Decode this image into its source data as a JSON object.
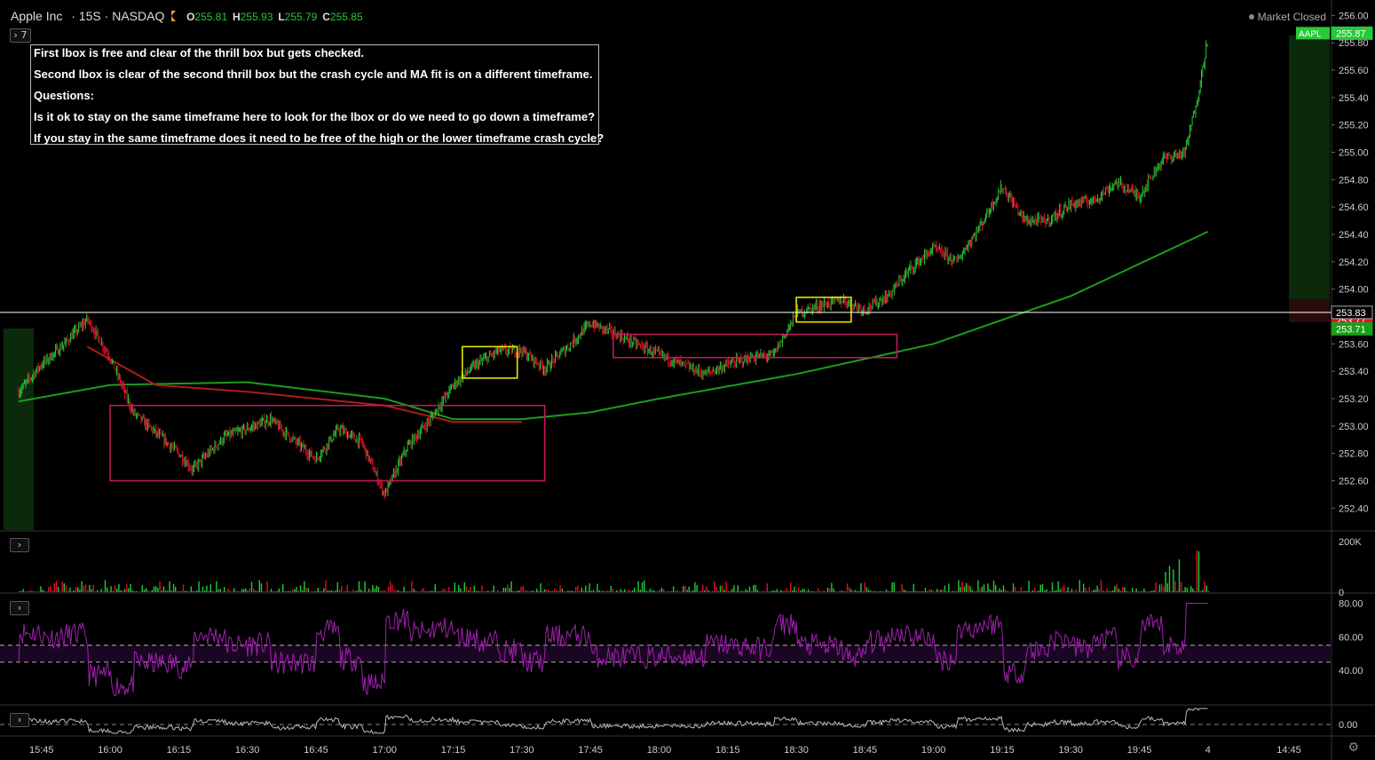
{
  "header": {
    "symbol": "Apple Inc",
    "interval": "15S",
    "exchange": "NASDAQ",
    "ohlc": {
      "o_label": "O",
      "o": "255.81",
      "h_label": "H",
      "h": "255.93",
      "l_label": "L",
      "l": "255.79",
      "c_label": "C",
      "c": "255.85"
    },
    "status": "Market Closed",
    "indicator_count": "7"
  },
  "note": {
    "lines": [
      "First lbox is free and clear of the thrill box but gets checked.",
      "Second lbox is clear of the second thrill box but the crash cycle and MA fit is on a different timeframe.",
      "Questions:",
      "Is it ok to stay on the same timeframe here to look for the lbox or do we need to go down a timeframe?",
      "If you stay in the same timeframe does it need to be free of the high or the lower timeframe crash cycle?"
    ]
  },
  "colors": {
    "up": "#26c937",
    "down": "#e0102a",
    "ma_fast": "#1a9e1a",
    "ma_slow": "#b01a1a",
    "thrill_box": "#c2185b",
    "lbox": "#e6e600",
    "rsi": "#a020b0",
    "osc": "#bbbbbb"
  },
  "chart_data": [
    {
      "type": "candlestick",
      "symbol": "AAPL",
      "interval": "15S",
      "x_ticks": [
        "15:45",
        "16:00",
        "16:15",
        "16:30",
        "16:45",
        "17:00",
        "17:15",
        "17:30",
        "17:45",
        "18:00",
        "18:15",
        "18:30",
        "18:45",
        "19:00",
        "19:15",
        "19:30",
        "19:45",
        "4",
        "14:45"
      ],
      "y_ticks": [
        "256.00",
        "255.80",
        "255.60",
        "255.40",
        "255.20",
        "255.00",
        "254.80",
        "254.60",
        "254.40",
        "254.20",
        "254.00",
        "253.80",
        "253.60",
        "253.40",
        "253.20",
        "253.00",
        "252.80",
        "252.60",
        "252.40"
      ],
      "ylim": [
        252.24,
        256.08
      ],
      "close_path": [
        [
          "15:40",
          253.25
        ],
        [
          "15:45",
          253.45
        ],
        [
          "15:50",
          253.6
        ],
        [
          "15:55",
          253.78
        ],
        [
          "16:00",
          253.5
        ],
        [
          "16:05",
          253.1
        ],
        [
          "16:10",
          252.95
        ],
        [
          "16:15",
          252.8
        ],
        [
          "16:18",
          252.68
        ],
        [
          "16:25",
          252.92
        ],
        [
          "16:30",
          252.98
        ],
        [
          "16:35",
          253.05
        ],
        [
          "16:40",
          252.9
        ],
        [
          "16:45",
          252.76
        ],
        [
          "16:50",
          252.98
        ],
        [
          "16:55",
          252.88
        ],
        [
          "17:00",
          252.5
        ],
        [
          "17:05",
          252.85
        ],
        [
          "17:10",
          253.05
        ],
        [
          "17:15",
          253.3
        ],
        [
          "17:20",
          253.45
        ],
        [
          "17:25",
          253.55
        ],
        [
          "17:30",
          253.55
        ],
        [
          "17:35",
          253.42
        ],
        [
          "17:40",
          253.58
        ],
        [
          "17:45",
          253.75
        ],
        [
          "17:50",
          253.68
        ],
        [
          "17:55",
          253.6
        ],
        [
          "18:00",
          253.52
        ],
        [
          "18:05",
          253.45
        ],
        [
          "18:10",
          253.38
        ],
        [
          "18:15",
          253.45
        ],
        [
          "18:20",
          253.5
        ],
        [
          "18:25",
          253.52
        ],
        [
          "18:30",
          253.82
        ],
        [
          "18:35",
          253.88
        ],
        [
          "18:40",
          253.92
        ],
        [
          "18:45",
          253.85
        ],
        [
          "18:50",
          253.95
        ],
        [
          "18:55",
          254.15
        ],
        [
          "19:00",
          254.3
        ],
        [
          "19:05",
          254.2
        ],
        [
          "19:10",
          254.45
        ],
        [
          "19:15",
          254.75
        ],
        [
          "19:20",
          254.5
        ],
        [
          "19:25",
          254.5
        ],
        [
          "19:30",
          254.62
        ],
        [
          "19:35",
          254.65
        ],
        [
          "19:40",
          254.78
        ],
        [
          "19:45",
          254.68
        ],
        [
          "19:50",
          254.95
        ],
        [
          "19:55",
          255.0
        ],
        [
          "19:58",
          255.45
        ],
        [
          "20:00",
          255.85
        ]
      ],
      "last_price": "255.87",
      "price_tags": [
        {
          "label": "AAPL",
          "value": "255.87",
          "color": "#26c937"
        },
        {
          "label": "",
          "value": "253.77",
          "color": "#e0102a"
        },
        {
          "label": "",
          "value": "253.71",
          "color": "#1a9e1a"
        },
        {
          "label": "",
          "value": "253.83",
          "color": "#000000"
        }
      ],
      "hline": 253.83,
      "series": [
        {
          "kind": "ma",
          "values": [
            [
              "15:40",
              253.18
            ],
            [
              "16:00",
              253.3
            ],
            [
              "16:30",
              253.32
            ],
            [
              "17:00",
              253.2
            ],
            [
              "17:15",
              253.05
            ],
            [
              "17:30",
              253.05
            ],
            [
              "17:45",
              253.1
            ],
            [
              "18:00",
              253.2
            ],
            [
              "18:30",
              253.38
            ],
            [
              "19:00",
              253.6
            ],
            [
              "19:30",
              253.95
            ],
            [
              "20:00",
              254.42
            ]
          ]
        },
        {
          "kind": "ma",
          "values": [
            [
              "15:55",
              253.58
            ],
            [
              "16:10",
              253.3
            ],
            [
              "16:30",
              253.25
            ],
            [
              "17:00",
              253.15
            ],
            [
              "17:15",
              253.03
            ],
            [
              "17:30",
              253.03
            ]
          ]
        }
      ],
      "thrill_boxes": [
        {
          "x0": "16:00",
          "x1": "17:35",
          "y0": 252.6,
          "y1": 253.15
        },
        {
          "x0": "17:50",
          "x1": "18:52",
          "y0": 253.5,
          "y1": 253.67
        }
      ],
      "lboxes": [
        {
          "x0": "17:17",
          "x1": "17:29",
          "y0": 253.35,
          "y1": 253.58
        },
        {
          "x0": "18:30",
          "x1": "18:42",
          "y0": 253.76,
          "y1": 253.94
        }
      ]
    },
    {
      "type": "bar",
      "name": "Volume",
      "y_ticks": [
        "200K",
        "0"
      ],
      "ylim": [
        0,
        200000
      ]
    },
    {
      "type": "line",
      "name": "RSI",
      "y_ticks": [
        "80.00",
        "60.00",
        "40.00"
      ],
      "ylim": [
        20,
        85
      ],
      "bands": [
        45,
        55
      ]
    },
    {
      "type": "line",
      "name": "Oscillator",
      "y_ticks": [
        "0.00"
      ]
    }
  ]
}
